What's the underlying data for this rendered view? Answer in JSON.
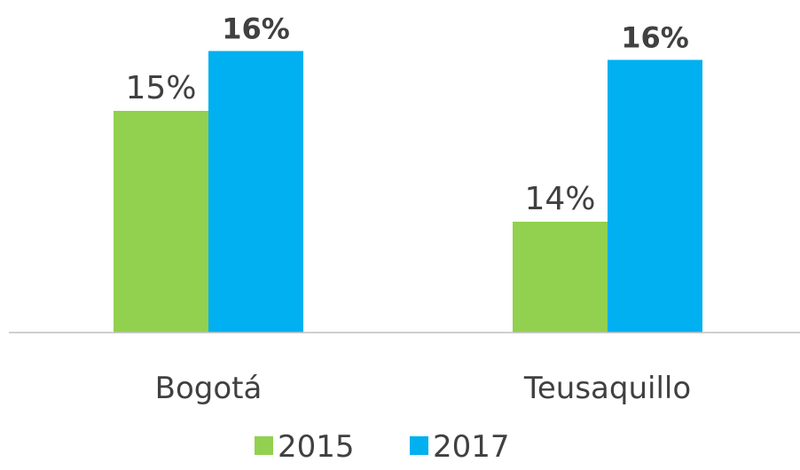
{
  "chart_data": {
    "type": "bar",
    "categories": [
      "Bogotá",
      "Teusaquillo"
    ],
    "series": [
      {
        "name": "2015",
        "color": "#92d050",
        "values": [
          15.4,
          14.4
        ],
        "value_labels": [
          "15%",
          "14%"
        ]
      },
      {
        "name": "2017",
        "color": "#00b0f0",
        "values": [
          15.94,
          15.86
        ],
        "value_labels": [
          "16%",
          "16%"
        ]
      }
    ],
    "ylim": [
      13.4,
      16.4
    ]
  }
}
